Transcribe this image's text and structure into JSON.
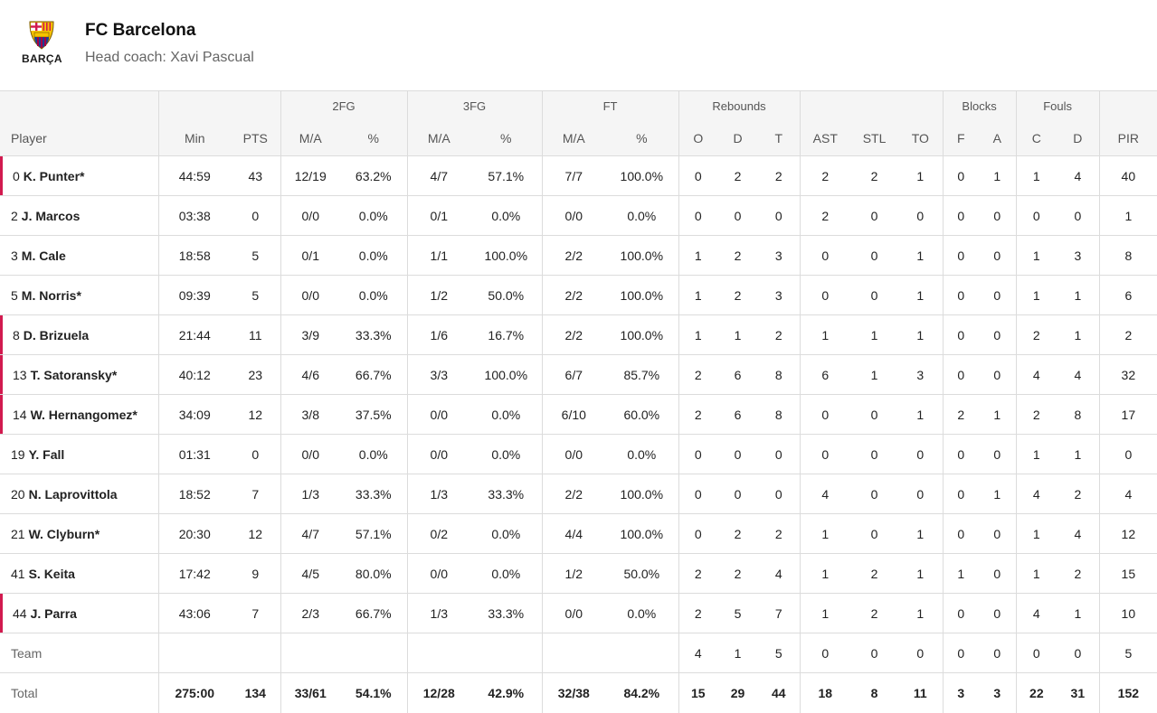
{
  "team": {
    "name": "FC Barcelona",
    "coach": "Head coach: Xavi Pascual",
    "logo_text": "BARÇA"
  },
  "headers": {
    "groups": {
      "fg2": "2FG",
      "fg3": "3FG",
      "ft": "FT",
      "rebounds": "Rebounds",
      "blocks": "Blocks",
      "fouls": "Fouls"
    },
    "cols": [
      "Player",
      "Min",
      "PTS",
      "M/A",
      "%",
      "M/A",
      "%",
      "M/A",
      "%",
      "O",
      "D",
      "T",
      "AST",
      "STL",
      "TO",
      "F",
      "A",
      "C",
      "D",
      "PIR"
    ]
  },
  "players": [
    {
      "num": "0",
      "name": "K. Punter*",
      "highlight": true,
      "stats": [
        "44:59",
        "43",
        "12/19",
        "63.2%",
        "4/7",
        "57.1%",
        "7/7",
        "100.0%",
        "0",
        "2",
        "2",
        "2",
        "2",
        "1",
        "0",
        "1",
        "1",
        "4",
        "40"
      ]
    },
    {
      "num": "2",
      "name": "J. Marcos",
      "highlight": false,
      "stats": [
        "03:38",
        "0",
        "0/0",
        "0.0%",
        "0/1",
        "0.0%",
        "0/0",
        "0.0%",
        "0",
        "0",
        "0",
        "2",
        "0",
        "0",
        "0",
        "0",
        "0",
        "0",
        "1"
      ]
    },
    {
      "num": "3",
      "name": "M. Cale",
      "highlight": false,
      "stats": [
        "18:58",
        "5",
        "0/1",
        "0.0%",
        "1/1",
        "100.0%",
        "2/2",
        "100.0%",
        "1",
        "2",
        "3",
        "0",
        "0",
        "1",
        "0",
        "0",
        "1",
        "3",
        "8"
      ]
    },
    {
      "num": "5",
      "name": "M. Norris*",
      "highlight": false,
      "stats": [
        "09:39",
        "5",
        "0/0",
        "0.0%",
        "1/2",
        "50.0%",
        "2/2",
        "100.0%",
        "1",
        "2",
        "3",
        "0",
        "0",
        "1",
        "0",
        "0",
        "1",
        "1",
        "6"
      ]
    },
    {
      "num": "8",
      "name": "D. Brizuela",
      "highlight": true,
      "stats": [
        "21:44",
        "11",
        "3/9",
        "33.3%",
        "1/6",
        "16.7%",
        "2/2",
        "100.0%",
        "1",
        "1",
        "2",
        "1",
        "1",
        "1",
        "0",
        "0",
        "2",
        "1",
        "2"
      ]
    },
    {
      "num": "13",
      "name": "T. Satoransky*",
      "highlight": true,
      "stats": [
        "40:12",
        "23",
        "4/6",
        "66.7%",
        "3/3",
        "100.0%",
        "6/7",
        "85.7%",
        "2",
        "6",
        "8",
        "6",
        "1",
        "3",
        "0",
        "0",
        "4",
        "4",
        "32"
      ]
    },
    {
      "num": "14",
      "name": "W. Hernangomez*",
      "highlight": true,
      "stats": [
        "34:09",
        "12",
        "3/8",
        "37.5%",
        "0/0",
        "0.0%",
        "6/10",
        "60.0%",
        "2",
        "6",
        "8",
        "0",
        "0",
        "1",
        "2",
        "1",
        "2",
        "8",
        "17"
      ]
    },
    {
      "num": "19",
      "name": "Y. Fall",
      "highlight": false,
      "stats": [
        "01:31",
        "0",
        "0/0",
        "0.0%",
        "0/0",
        "0.0%",
        "0/0",
        "0.0%",
        "0",
        "0",
        "0",
        "0",
        "0",
        "0",
        "0",
        "0",
        "1",
        "1",
        "0"
      ]
    },
    {
      "num": "20",
      "name": "N. Laprovittola",
      "highlight": false,
      "stats": [
        "18:52",
        "7",
        "1/3",
        "33.3%",
        "1/3",
        "33.3%",
        "2/2",
        "100.0%",
        "0",
        "0",
        "0",
        "4",
        "0",
        "0",
        "0",
        "1",
        "4",
        "2",
        "4"
      ]
    },
    {
      "num": "21",
      "name": "W. Clyburn*",
      "highlight": false,
      "stats": [
        "20:30",
        "12",
        "4/7",
        "57.1%",
        "0/2",
        "0.0%",
        "4/4",
        "100.0%",
        "0",
        "2",
        "2",
        "1",
        "0",
        "1",
        "0",
        "0",
        "1",
        "4",
        "12"
      ]
    },
    {
      "num": "41",
      "name": "S. Keita",
      "highlight": false,
      "stats": [
        "17:42",
        "9",
        "4/5",
        "80.0%",
        "0/0",
        "0.0%",
        "1/2",
        "50.0%",
        "2",
        "2",
        "4",
        "1",
        "2",
        "1",
        "1",
        "0",
        "1",
        "2",
        "15"
      ]
    },
    {
      "num": "44",
      "name": "J. Parra",
      "highlight": true,
      "stats": [
        "43:06",
        "7",
        "2/3",
        "66.7%",
        "1/3",
        "33.3%",
        "0/0",
        "0.0%",
        "2",
        "5",
        "7",
        "1",
        "2",
        "1",
        "0",
        "0",
        "4",
        "1",
        "10"
      ]
    }
  ],
  "team_row": {
    "label": "Team",
    "stats": [
      "",
      "",
      "",
      "",
      "",
      "",
      "",
      "",
      "4",
      "1",
      "5",
      "0",
      "0",
      "0",
      "0",
      "0",
      "0",
      "0",
      "5"
    ]
  },
  "total_row": {
    "label": "Total",
    "stats": [
      "275:00",
      "134",
      "33/61",
      "54.1%",
      "12/28",
      "42.9%",
      "32/38",
      "84.2%",
      "15",
      "29",
      "44",
      "18",
      "8",
      "11",
      "3",
      "3",
      "22",
      "31",
      "152"
    ]
  },
  "colors": {
    "accent": "#d21a4f",
    "header_bg": "#f5f5f5",
    "border": "#dcdcdc"
  }
}
